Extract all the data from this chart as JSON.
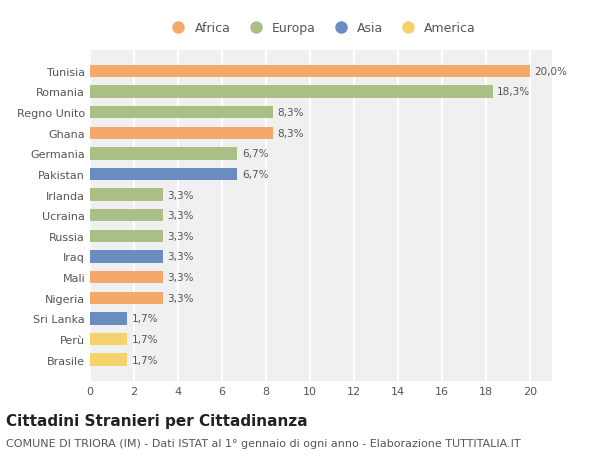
{
  "categories": [
    "Tunisia",
    "Romania",
    "Regno Unito",
    "Ghana",
    "Germania",
    "Pakistan",
    "Irlanda",
    "Ucraina",
    "Russia",
    "Iraq",
    "Mali",
    "Nigeria",
    "Sri Lanka",
    "Perù",
    "Brasile"
  ],
  "values": [
    20.0,
    18.3,
    8.3,
    8.3,
    6.7,
    6.7,
    3.3,
    3.3,
    3.3,
    3.3,
    3.3,
    3.3,
    1.7,
    1.7,
    1.7
  ],
  "continents": [
    "Africa",
    "Europa",
    "Europa",
    "Africa",
    "Europa",
    "Asia",
    "Europa",
    "Europa",
    "Europa",
    "Asia",
    "Africa",
    "Africa",
    "Asia",
    "America",
    "America"
  ],
  "labels": [
    "20,0%",
    "18,3%",
    "8,3%",
    "8,3%",
    "6,7%",
    "6,7%",
    "3,3%",
    "3,3%",
    "3,3%",
    "3,3%",
    "3,3%",
    "3,3%",
    "1,7%",
    "1,7%",
    "1,7%"
  ],
  "continent_colors": {
    "Africa": "#F4A96A",
    "Europa": "#AABF85",
    "Asia": "#6B8CBE",
    "America": "#F5D26B"
  },
  "legend_order": [
    "Africa",
    "Europa",
    "Asia",
    "America"
  ],
  "xlim": [
    0,
    21
  ],
  "xticks": [
    0,
    2,
    4,
    6,
    8,
    10,
    12,
    14,
    16,
    18,
    20
  ],
  "title": "Cittadini Stranieri per Cittadinanza",
  "subtitle": "COMUNE DI TRIORA (IM) - Dati ISTAT al 1° gennaio di ogni anno - Elaborazione TUTTITALIA.IT",
  "background_color": "#ffffff",
  "plot_background": "#f0f0f0",
  "grid_color": "#ffffff",
  "bar_height": 0.6,
  "title_fontsize": 11,
  "subtitle_fontsize": 8,
  "label_fontsize": 7.5,
  "tick_fontsize": 8,
  "legend_fontsize": 9
}
